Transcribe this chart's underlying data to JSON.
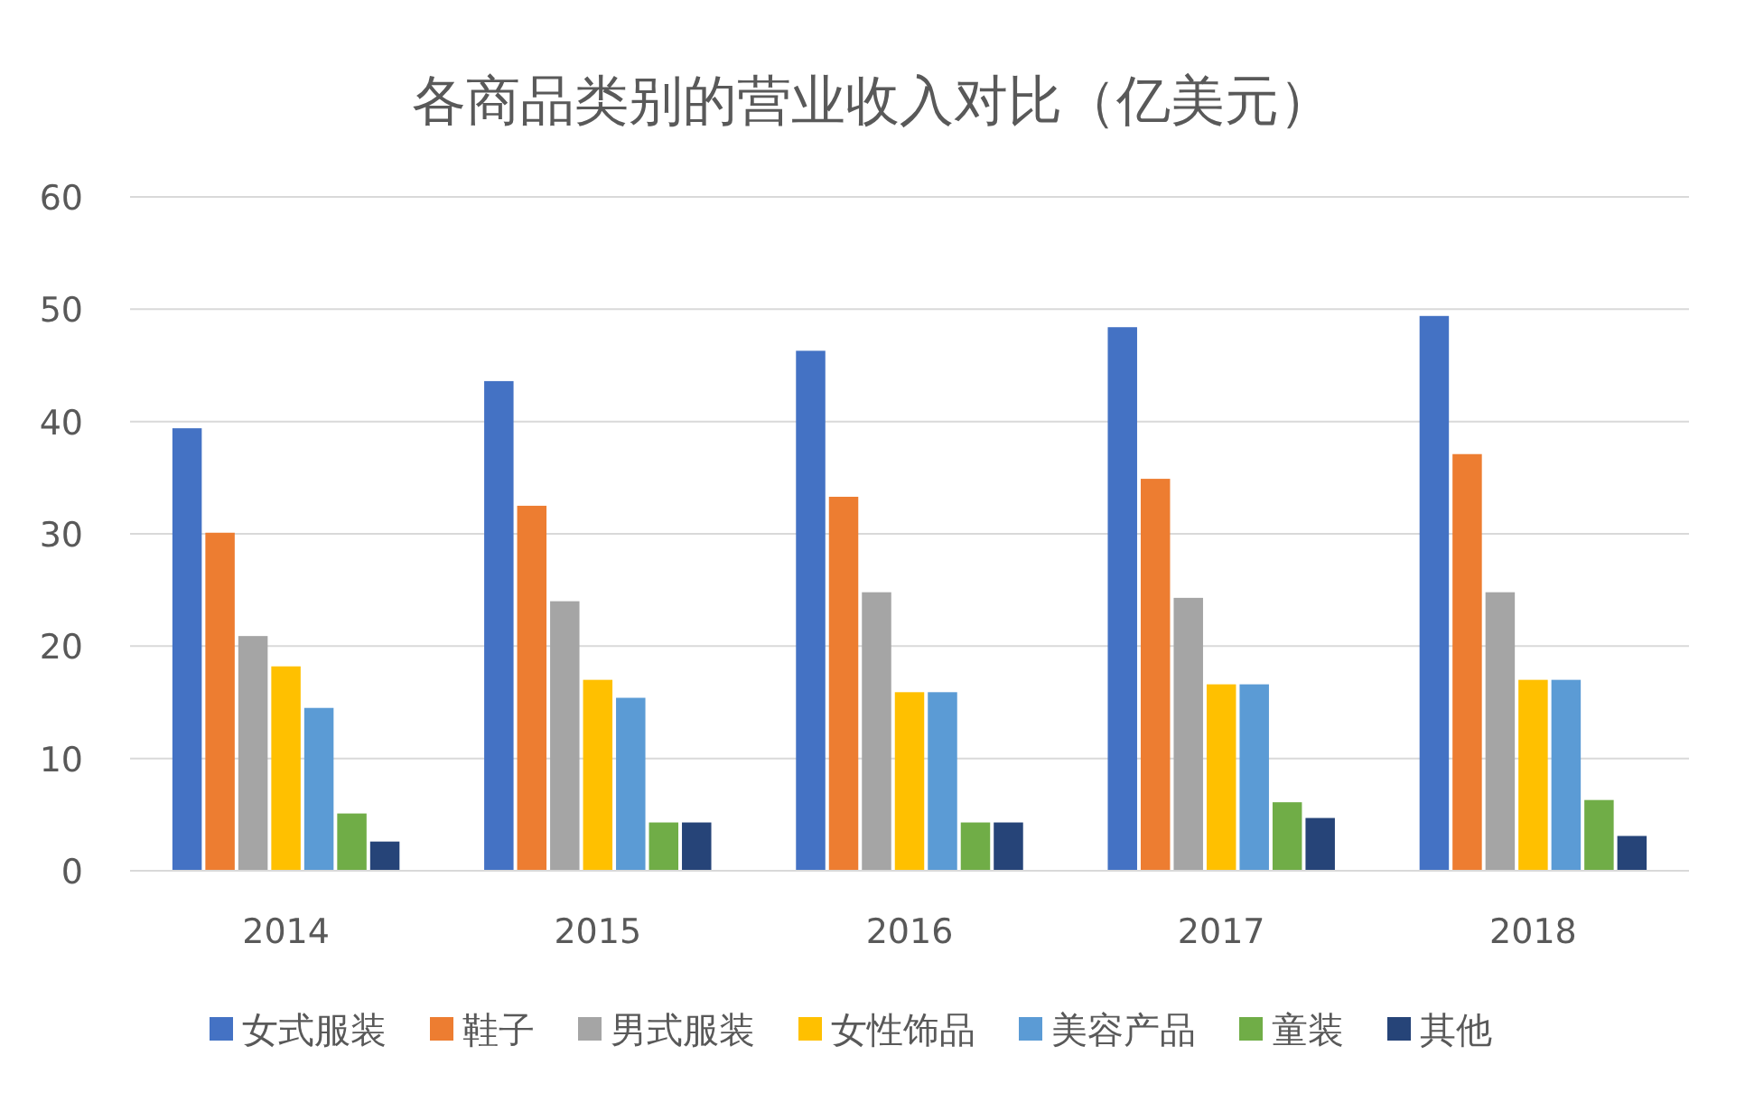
{
  "chart_data": {
    "type": "bar",
    "title": "各商品类别的营业收入对比（亿美元）",
    "categories": [
      "2014",
      "2015",
      "2016",
      "2017",
      "2018"
    ],
    "series": [
      {
        "name": "女式服装",
        "color": "#4472c4",
        "values": [
          39.4,
          43.6,
          46.3,
          48.4,
          49.4
        ]
      },
      {
        "name": "鞋子",
        "color": "#ed7d31",
        "values": [
          30.1,
          32.5,
          33.3,
          34.9,
          37.1
        ]
      },
      {
        "name": "男式服装",
        "color": "#a5a5a5",
        "values": [
          20.9,
          24.0,
          24.8,
          24.3,
          24.8
        ]
      },
      {
        "name": "女性饰品",
        "color": "#ffc000",
        "values": [
          18.2,
          17.0,
          15.9,
          16.6,
          17.0
        ]
      },
      {
        "name": "美容产品",
        "color": "#5b9bd5",
        "values": [
          14.5,
          15.4,
          15.9,
          16.6,
          17.0
        ]
      },
      {
        "name": "童装",
        "color": "#70ad47",
        "values": [
          5.1,
          4.3,
          4.3,
          6.1,
          6.3
        ]
      },
      {
        "name": "其他",
        "color": "#264478",
        "values": [
          2.6,
          4.3,
          4.3,
          4.7,
          3.1
        ]
      }
    ],
    "ylim": [
      0,
      60
    ],
    "yticks": [
      0,
      10,
      20,
      30,
      40,
      50,
      60
    ],
    "grid": "y",
    "legend": "bottom"
  }
}
